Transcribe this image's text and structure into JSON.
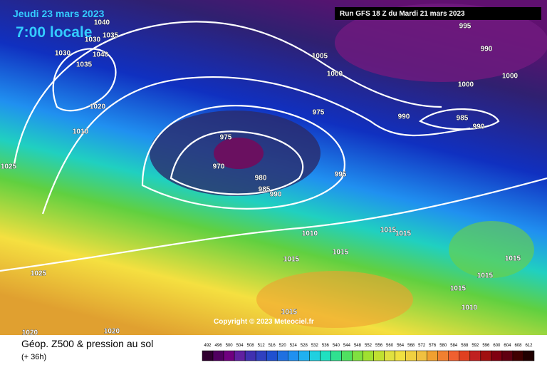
{
  "header": {
    "valid_date": "Jeudi 23 mars 2023",
    "local_time": "7:00 locale",
    "run": "Run GFS 18 Z du Mardi 21 mars 2023"
  },
  "map": {
    "copyright": "Copyright © 2023 Meteociel.fr",
    "isobar_labels": [
      1040,
      1035,
      1030,
      1030,
      1040,
      1035,
      1020,
      1010,
      1025,
      1005,
      1000,
      995,
      990,
      1000,
      1000,
      990,
      985,
      990,
      975,
      975,
      970,
      980,
      985,
      990,
      995,
      1010,
      1015,
      1015,
      1015,
      1015,
      1025,
      1015,
      1015,
      1015,
      1010,
      1015,
      1020,
      1020
    ]
  },
  "footer": {
    "title": "Géop. Z500 & pression au sol",
    "lead": "(+ 36h)",
    "scale": [
      492,
      496,
      500,
      504,
      508,
      512,
      516,
      520,
      524,
      528,
      532,
      536,
      540,
      544,
      548,
      552,
      556,
      560,
      564,
      568,
      572,
      576,
      580,
      584,
      588,
      592,
      596,
      600,
      604,
      608,
      612
    ]
  }
}
